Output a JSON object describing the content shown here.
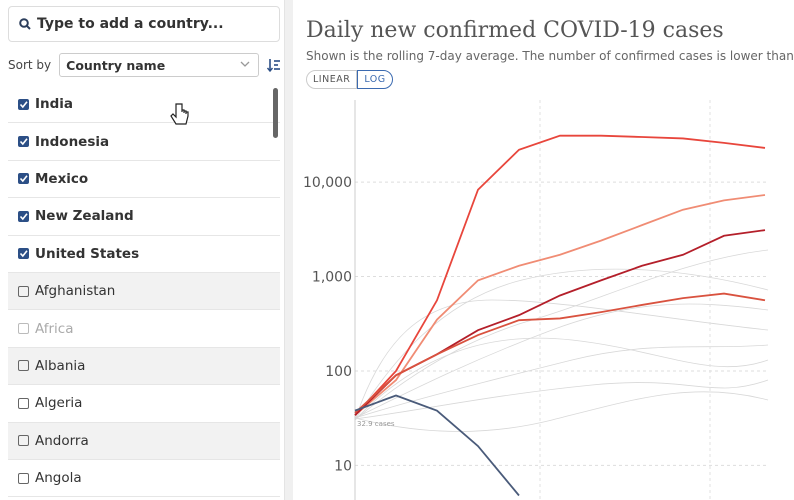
{
  "sidebar": {
    "search_placeholder": "Type to add a country...",
    "sort_label": "Sort by",
    "sort_value": "Country name",
    "items": [
      {
        "label": "India",
        "checked": true,
        "disabled": false
      },
      {
        "label": "Indonesia",
        "checked": true,
        "disabled": false
      },
      {
        "label": "Mexico",
        "checked": true,
        "disabled": false
      },
      {
        "label": "New Zealand",
        "checked": true,
        "disabled": false
      },
      {
        "label": "United States",
        "checked": true,
        "disabled": false
      },
      {
        "label": "Afghanistan",
        "checked": false,
        "disabled": false
      },
      {
        "label": "Africa",
        "checked": false,
        "disabled": true
      },
      {
        "label": "Albania",
        "checked": false,
        "disabled": false
      },
      {
        "label": "Algeria",
        "checked": false,
        "disabled": false
      },
      {
        "label": "Andorra",
        "checked": false,
        "disabled": false
      },
      {
        "label": "Angola",
        "checked": false,
        "disabled": false
      }
    ]
  },
  "chart": {
    "type": "line",
    "title": "Daily new confirmed COVID-19 cases",
    "subtitle": "Shown is the rolling 7-day average. The number of confirmed cases is lower than",
    "scale_options": [
      "LINEAR",
      "LOG"
    ],
    "selected_scale": 1,
    "log_scale": true,
    "annotation": "32.9 cases",
    "ylim": [
      4.3,
      74000
    ],
    "yticks": [
      {
        "value": 10000,
        "label": "10,000"
      },
      {
        "value": 1000,
        "label": "1,000"
      },
      100,
      10
    ],
    "grid": true,
    "series": [
      {
        "color": "#e8463c",
        "values": [
          34,
          100,
          560,
          8300,
          22000,
          31000,
          31000,
          30000,
          29000,
          26000,
          23000
        ]
      },
      {
        "color": "#f08c74",
        "values": [
          34,
          80,
          350,
          910,
          1300,
          1700,
          2400,
          3500,
          5100,
          6400,
          7300
        ]
      },
      {
        "color": "#b41f2a",
        "values": [
          34,
          90,
          150,
          270,
          390,
          630,
          910,
          1300,
          1700,
          2700,
          3100
        ]
      },
      {
        "color": "#d9523f",
        "values": [
          36,
          90,
          150,
          240,
          345,
          360,
          420,
          500,
          590,
          660,
          560
        ]
      },
      {
        "color": "#4a5b7a",
        "values": [
          38,
          55,
          38,
          16,
          4.8,
          null,
          null,
          null,
          null,
          null,
          null
        ]
      }
    ]
  }
}
